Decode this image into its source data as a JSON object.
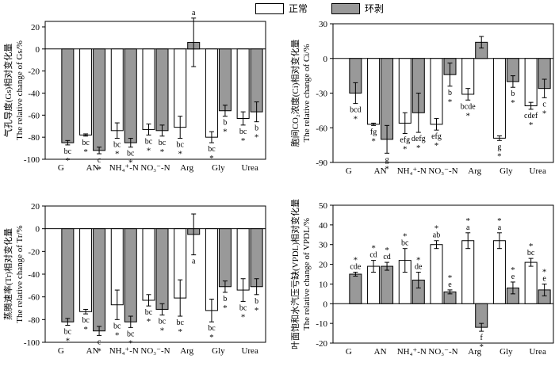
{
  "legend": {
    "normal_label": "正常",
    "girdled_label": "环剥",
    "normal_color": "#ffffff",
    "girdled_color": "#999999"
  },
  "chart_data": [
    {
      "type": "bar",
      "id": "gs",
      "ylabel_cn": "气孔导度(Gs)相对变化量",
      "ylabel_en": "The relative change of Gs/%",
      "ylim": [
        -100,
        25
      ],
      "yticks": [
        -100,
        -80,
        -60,
        -40,
        -20,
        0,
        20
      ],
      "categories": [
        "G",
        "AN",
        "NH₄⁺-N",
        "NO₃⁻-N",
        "Arg",
        "Gly",
        "Urea"
      ],
      "series": [
        {
          "name": "正常",
          "values": [
            null,
            -78,
            -74,
            -73,
            -71,
            -80,
            -63
          ],
          "errors": [
            null,
            1,
            7,
            5,
            10,
            5,
            6
          ],
          "labels": [
            "",
            "bc",
            "bc",
            "bc",
            "bc",
            "bc",
            "bc"
          ],
          "stars": [
            "",
            "*",
            "*",
            "*",
            "*",
            "*",
            "*"
          ]
        },
        {
          "name": "环剥",
          "values": [
            -85,
            -92,
            -85,
            -74,
            6,
            -56,
            -57
          ],
          "errors": [
            2,
            3,
            4,
            5,
            22,
            5,
            9
          ],
          "labels": [
            "bc",
            "c",
            "bc",
            "bc",
            "a",
            "b",
            "b"
          ],
          "stars": [
            "*",
            "*",
            "*",
            "*",
            "",
            "*",
            "*"
          ]
        }
      ]
    },
    {
      "type": "bar",
      "id": "ci",
      "ylabel_cn": "胞间CO₂浓度(Ci)相对变化量",
      "ylabel_en": "The relative change of Ci/%",
      "ylim": [
        -90,
        30
      ],
      "yticks": [
        -90,
        -60,
        -30,
        0,
        30
      ],
      "categories": [
        "G",
        "AN",
        "NH₄⁺-N",
        "NO₃⁻-N",
        "Arg",
        "Gly",
        "Urea"
      ],
      "series": [
        {
          "name": "正常",
          "values": [
            null,
            -57,
            -56,
            -57,
            -31,
            -69,
            -41
          ],
          "errors": [
            null,
            1,
            9,
            5,
            5,
            2,
            3
          ],
          "labels": [
            "",
            "fg",
            "efg",
            "efg",
            "bcde",
            "g",
            "cdef"
          ],
          "stars": [
            "",
            "*",
            "*",
            "*",
            "*",
            "*",
            "*"
          ]
        },
        {
          "name": "环剥",
          "values": [
            -30,
            -70,
            -47,
            -14,
            14,
            -20,
            -26
          ],
          "errors": [
            9,
            12,
            17,
            10,
            5,
            5,
            8
          ],
          "labels": [
            "bcd",
            "g",
            "defg",
            "b",
            "",
            "b",
            "c"
          ],
          "stars": [
            "*",
            "*",
            "*",
            "*",
            "",
            "*",
            "*"
          ]
        }
      ]
    },
    {
      "type": "bar",
      "id": "tr",
      "ylabel_cn": "蒸腾速率(Tr)相对变化量",
      "ylabel_en": "The relative change of Tr/%",
      "ylim": [
        -100,
        20
      ],
      "yticks": [
        -100,
        -80,
        -60,
        -40,
        -20,
        0,
        20
      ],
      "categories": [
        "G",
        "AN",
        "NH₄⁺-N",
        "NO₃⁻-N",
        "Arg",
        "Gly",
        "Urea"
      ],
      "series": [
        {
          "name": "正常",
          "values": [
            null,
            -73,
            -67,
            -63,
            -61,
            -72,
            -54
          ],
          "errors": [
            null,
            2,
            13,
            5,
            16,
            10,
            10
          ],
          "labels": [
            "",
            "bc",
            "bc",
            "bc",
            "bc",
            "bc",
            "bc"
          ],
          "stars": [
            "",
            "*",
            "*",
            "*",
            "*",
            "*",
            "*"
          ]
        },
        {
          "name": "环剥",
          "values": [
            -82,
            -90,
            -82,
            -71,
            -5,
            -51,
            -51
          ],
          "errors": [
            3,
            4,
            5,
            5,
            18,
            5,
            7
          ],
          "labels": [
            "bc",
            "c",
            "bc",
            "bc",
            "a",
            "b",
            "b"
          ],
          "stars": [
            "*",
            "*",
            "*",
            "*",
            "",
            "*",
            "*"
          ]
        }
      ]
    },
    {
      "type": "bar",
      "id": "vpdl",
      "ylabel_cn": "叶面饱和水汽压亏缺(VPDL)相对变化量",
      "ylabel_en": "The relative change of VPDL/%",
      "ylim": [
        -20,
        50
      ],
      "yticks": [
        -20,
        -10,
        0,
        10,
        20,
        30,
        40,
        50
      ],
      "categories": [
        "G",
        "AN",
        "NH₄⁺-N",
        "NO₃⁻-N",
        "Arg",
        "Gly",
        "Urea"
      ],
      "series": [
        {
          "name": "正常",
          "values": [
            null,
            19,
            22,
            30,
            32,
            32,
            21
          ],
          "errors": [
            null,
            3,
            6,
            2,
            4,
            4,
            2
          ],
          "labels": [
            "",
            "cd",
            "bc",
            "ab",
            "a",
            "a",
            "bc"
          ],
          "stars": [
            "",
            "*",
            "*",
            "*",
            "*",
            "*",
            "*"
          ]
        },
        {
          "name": "环剥",
          "values": [
            15,
            19,
            12,
            6,
            -12,
            8,
            7
          ],
          "errors": [
            1,
            2,
            4,
            1,
            2,
            3,
            3
          ],
          "labels": [
            "cde",
            "cd",
            "de",
            "e",
            "f",
            "e",
            "e"
          ],
          "stars": [
            "*",
            "*",
            "*",
            "*",
            "*",
            "*",
            "*"
          ]
        }
      ]
    }
  ]
}
